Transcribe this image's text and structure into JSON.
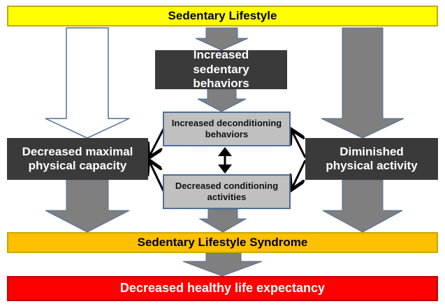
{
  "nodes": {
    "top": "Sedentary Lifestyle",
    "sedentary_behaviors": "Increased sedentary behaviors",
    "deconditioning": "Increased deconditioning behaviors",
    "conditioning": "Decreased conditioning activities",
    "max_capacity": "Decreased maximal physical capacity",
    "physical_activity": "Diminished physical activity",
    "syndrome": "Sedentary Lifestyle Syndrome",
    "life_expectancy": "Decreased healthy life expectancy"
  },
  "colors": {
    "top_bar": "#ffff00",
    "syndrome_bar": "#ffc000",
    "life_bar": "#ff0000",
    "dark_box": "#3a3a3a",
    "grey_box": "#c0c0c0",
    "arrow": "#7f7f7f"
  }
}
